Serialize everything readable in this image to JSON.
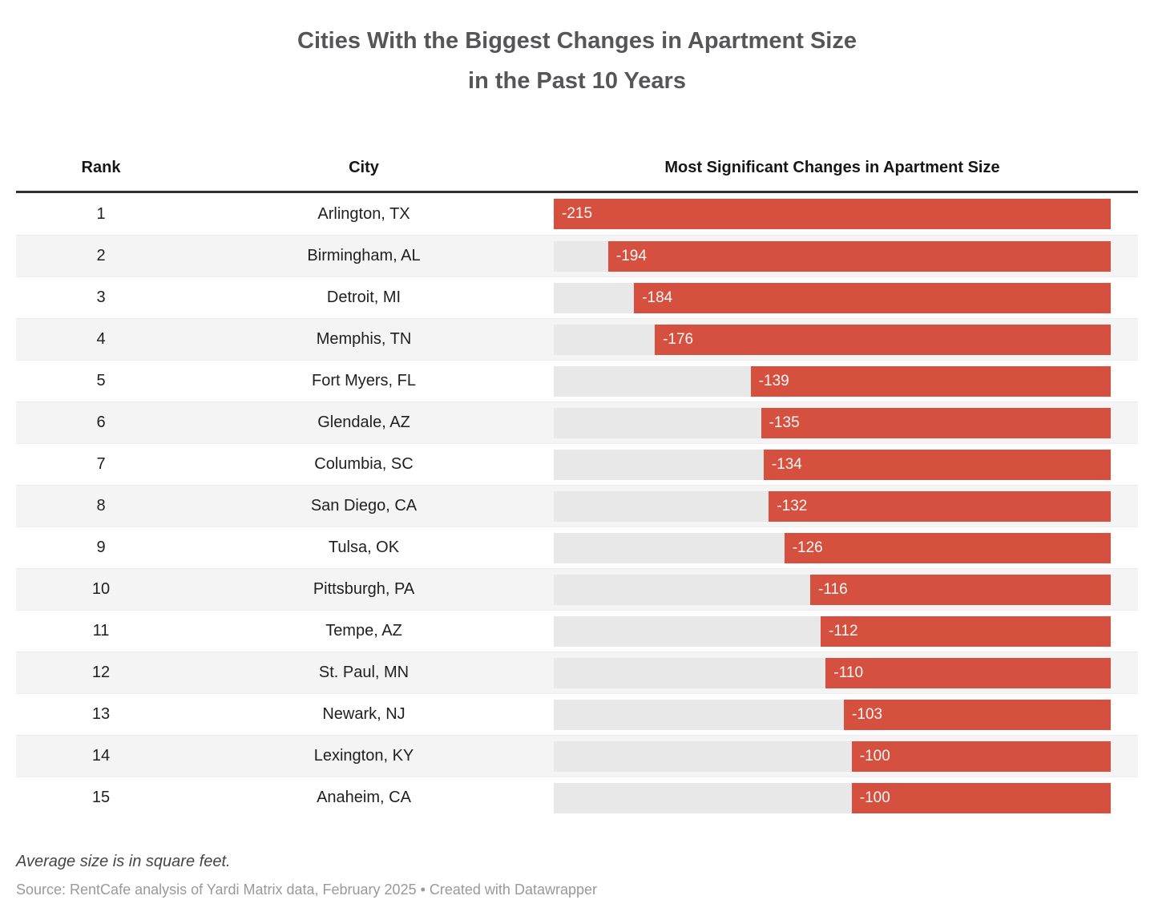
{
  "title": {
    "line1": "Cities With the Biggest Changes in Apartment Size",
    "line2": "in the Past 10 Years"
  },
  "table": {
    "headers": {
      "rank": "Rank",
      "city": "City",
      "bar": "Most Significant Changes in Apartment Size"
    }
  },
  "chart_data": {
    "type": "bar",
    "title": "Cities With the Biggest Changes in Apartment Size in the Past 10 Years",
    "orientation": "horizontal",
    "ranks": [
      1,
      2,
      3,
      4,
      5,
      6,
      7,
      8,
      9,
      10,
      11,
      12,
      13,
      14,
      15
    ],
    "categories": [
      "Arlington, TX",
      "Birmingham, AL",
      "Detroit, MI",
      "Memphis, TN",
      "Fort Myers, FL",
      "Glendale, AZ",
      "Columbia, SC",
      "San Diego, CA",
      "Tulsa, OK",
      "Pittsburgh, PA",
      "Tempe, AZ",
      "St. Paul, MN",
      "Newark, NJ",
      "Lexington, KY",
      "Anaheim, CA"
    ],
    "values": [
      -215,
      -194,
      -184,
      -176,
      -139,
      -135,
      -134,
      -132,
      -126,
      -116,
      -112,
      -110,
      -103,
      -100,
      -100
    ],
    "value_unit": "square feet",
    "xlim": [
      -215,
      0
    ],
    "bars_anchored": "right",
    "grid": false,
    "legend": "none"
  },
  "colors": {
    "bar": "#d5503e",
    "track": "#e8e8e8",
    "row_stripe": "#f4f4f4",
    "header_rule": "#2f2f2f",
    "title_text": "#565659",
    "source_text": "#999999"
  },
  "footer": {
    "note": "Average size is in square feet.",
    "source": "Source: RentCafe analysis of Yardi Matrix data, February 2025 • Created with Datawrapper"
  }
}
